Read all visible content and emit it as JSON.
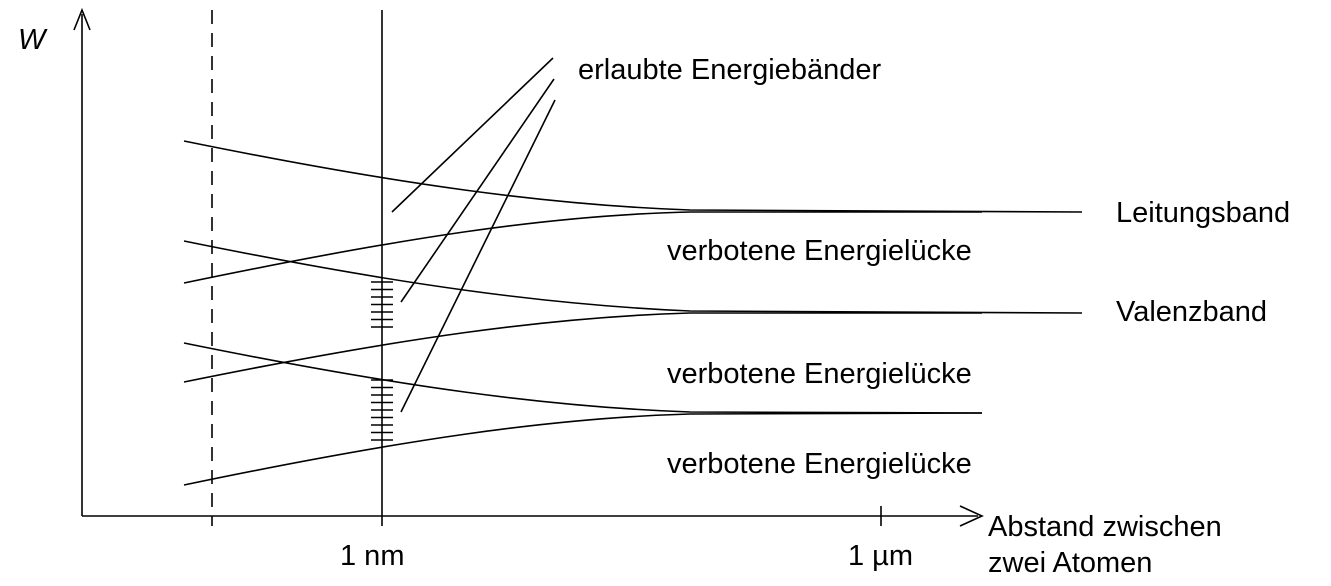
{
  "axes": {
    "y_label": "W",
    "x_label_line1": "Abstand zwischen",
    "x_label_line2": "zwei Atomen",
    "tick_1nm": "1 nm",
    "tick_1um": "1 µm"
  },
  "annotations": {
    "allowed_bands": "erlaubte Energiebänder",
    "conduction_band": "Leitungsband",
    "valence_band": "Valenzband",
    "gap_top": "verbotene Energielücke",
    "gap_middle": "verbotene Energielücke",
    "gap_bottom": "verbotene Energielücke"
  }
}
